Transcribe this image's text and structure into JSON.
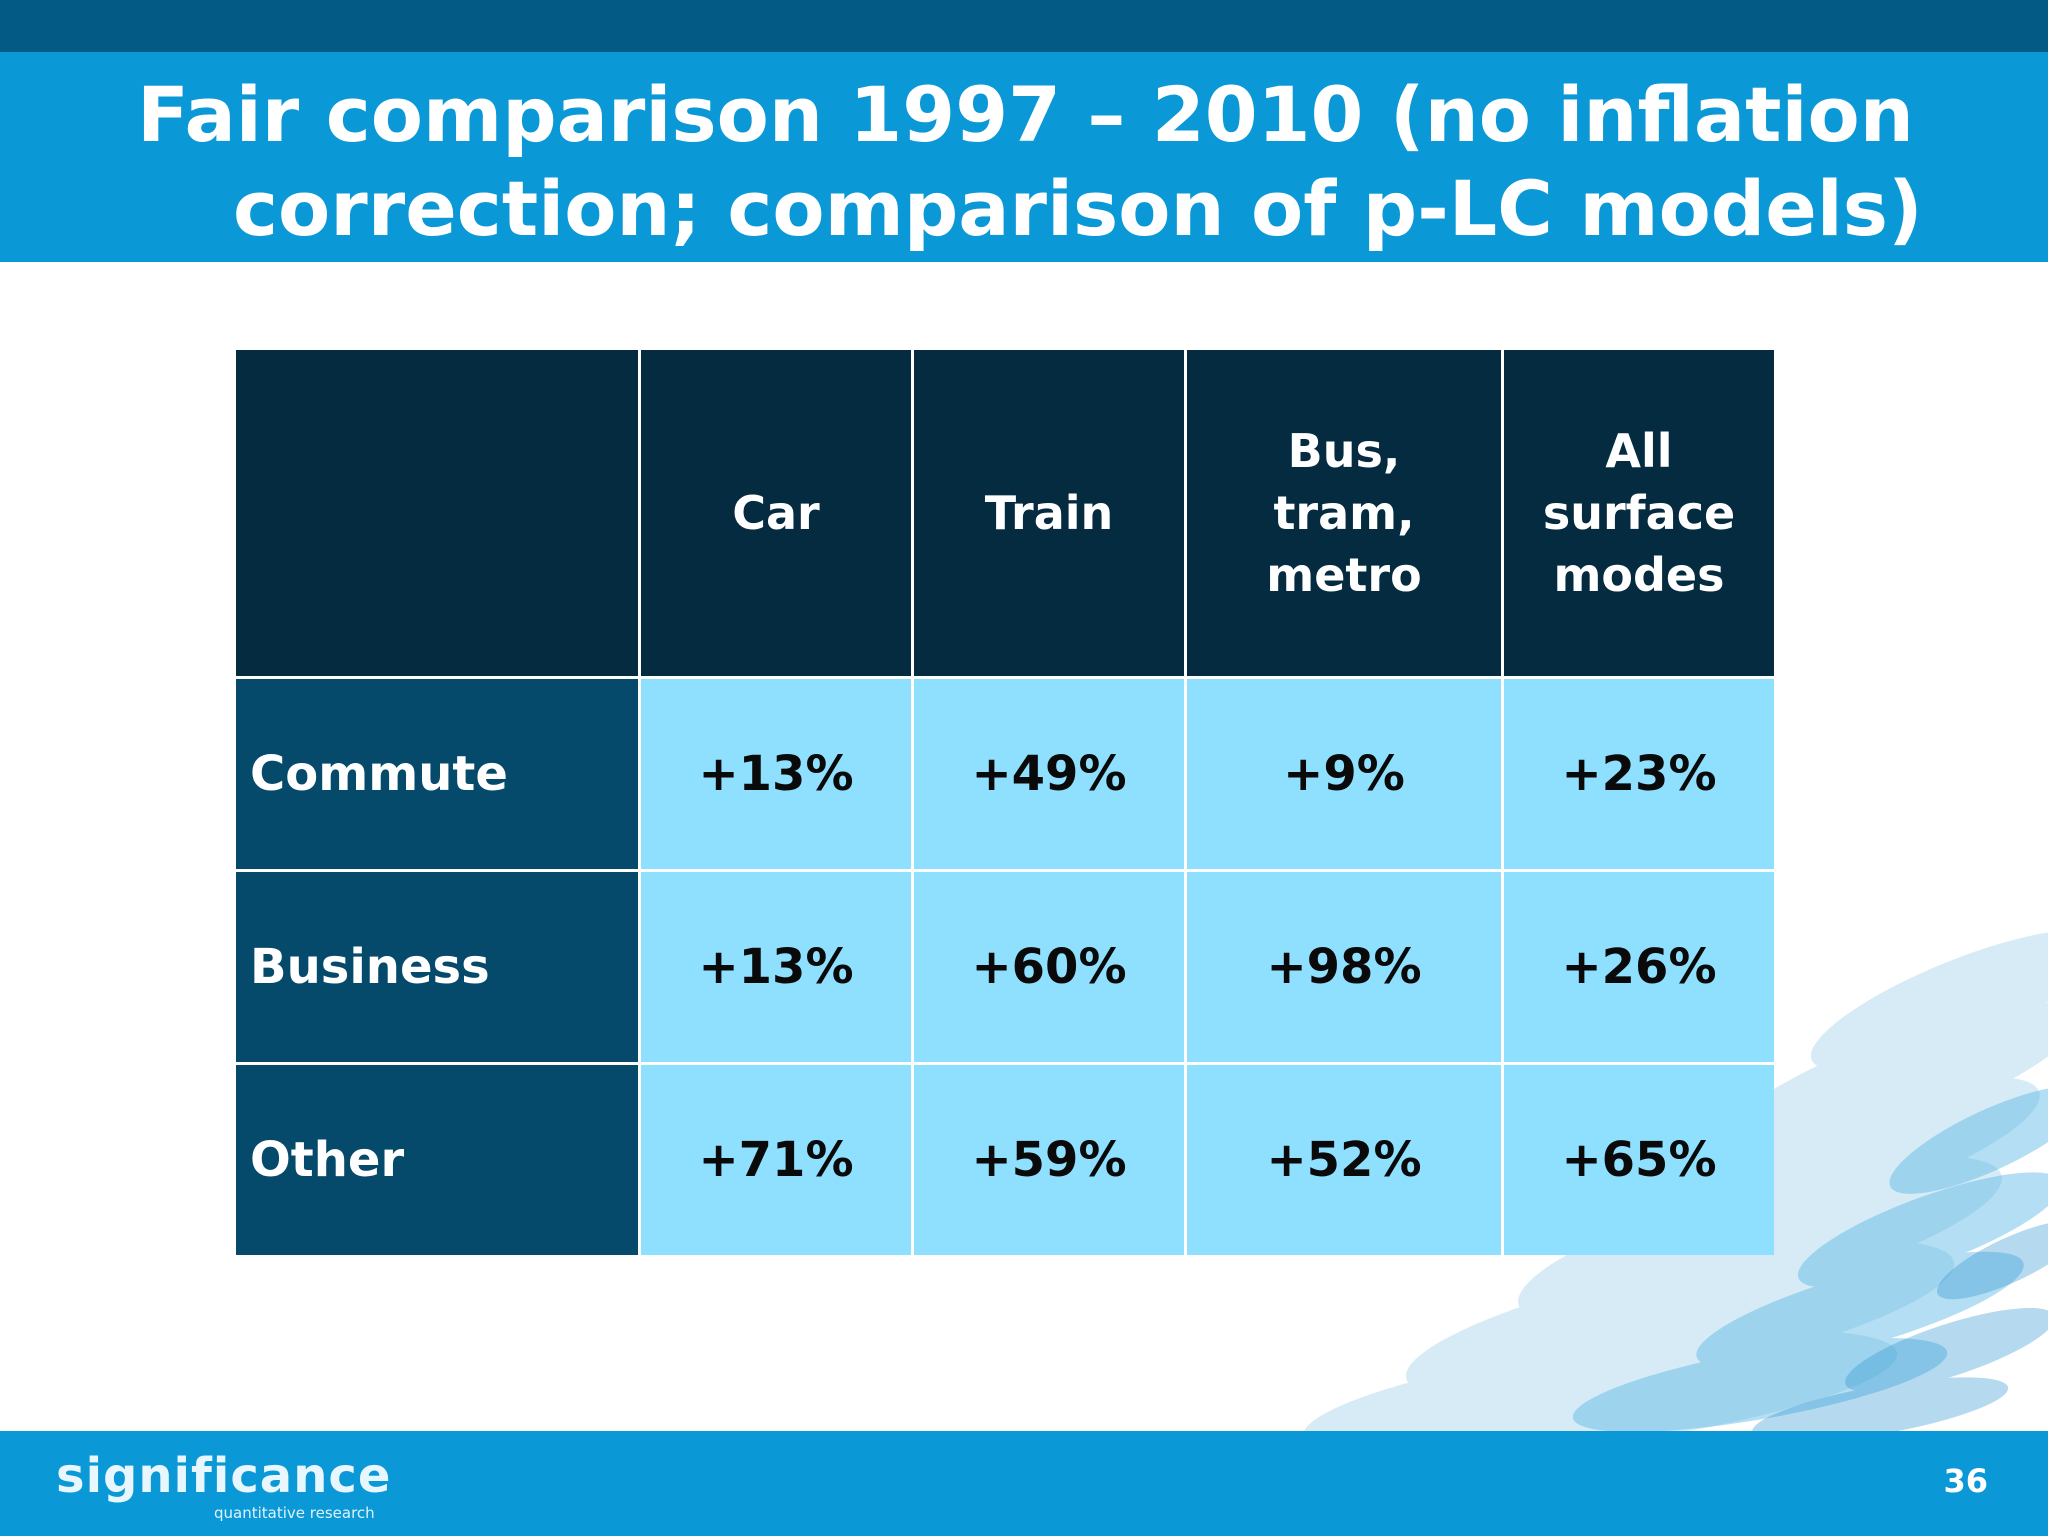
{
  "slide": {
    "title": "Fair comparison 1997 – 2010 (no inflation correction; comparison of p-LC models)",
    "page_number": "36"
  },
  "table": {
    "columns": [
      "Car",
      "Train",
      "Bus, tram, metro",
      "All surface modes"
    ],
    "rows": [
      {
        "label": "Commute",
        "values": [
          "+13%",
          "+49%",
          "+9%",
          "+23%"
        ]
      },
      {
        "label": "Business",
        "values": [
          "+13%",
          "+60%",
          "+98%",
          "+26%"
        ]
      },
      {
        "label": "Other",
        "values": [
          "+71%",
          "+59%",
          "+52%",
          "+65%"
        ]
      }
    ]
  },
  "footer": {
    "logo_text": "significance",
    "logo_subtitle": "quantitative research"
  },
  "colors": {
    "title_band": "#0a98d6",
    "top_strip": "#025a85",
    "header_cell": "#052b40",
    "row_label_cell": "#054a6a",
    "value_cell": "#8fdfff"
  }
}
